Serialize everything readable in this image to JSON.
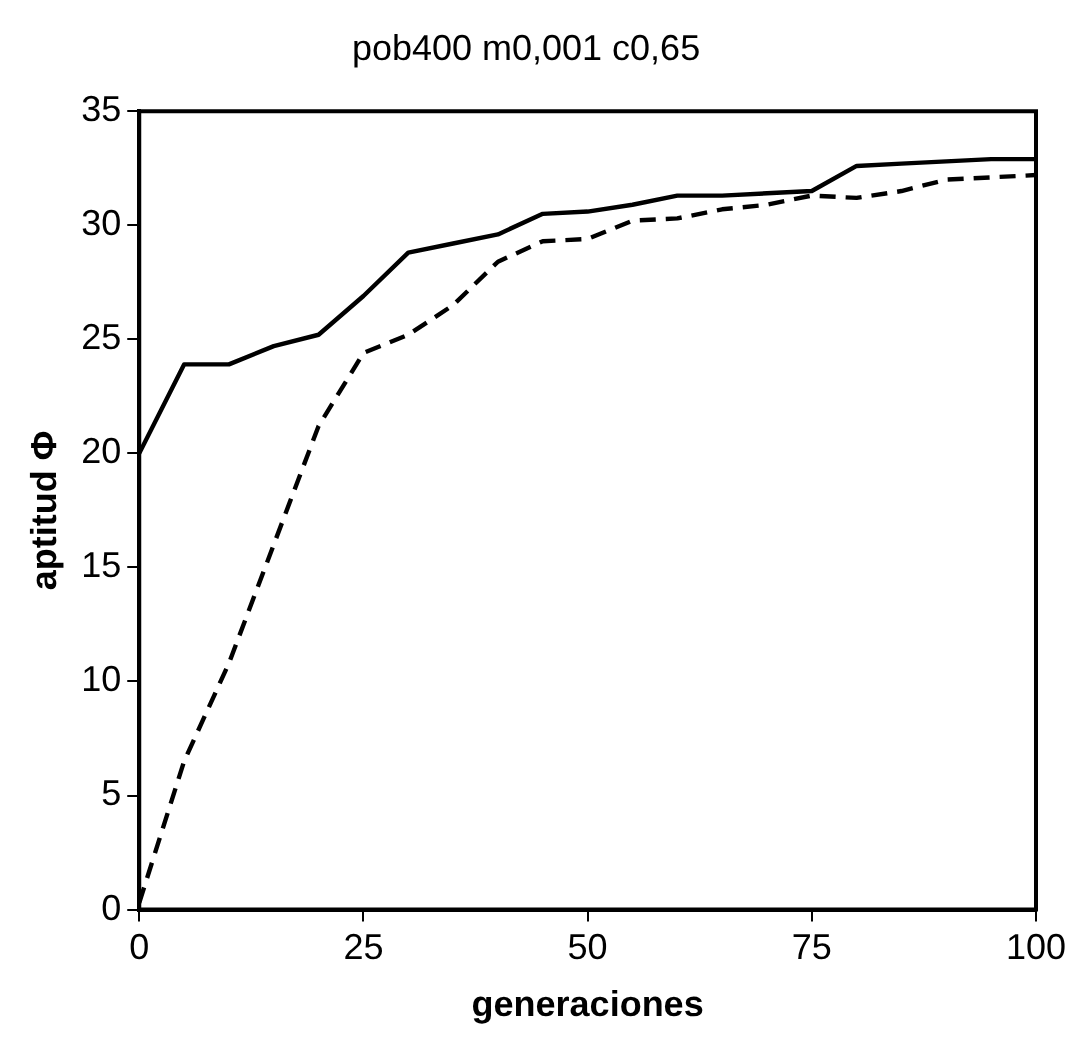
{
  "chart_data": {
    "type": "line",
    "title": "pob400 m0,001 c0,65",
    "xlabel": "generaciones",
    "ylabel": "aptitud Φ",
    "x": [
      0,
      5,
      10,
      15,
      20,
      25,
      30,
      35,
      40,
      45,
      50,
      55,
      60,
      65,
      70,
      75,
      80,
      85,
      90,
      95,
      100
    ],
    "series": [
      {
        "color": "#000000",
        "line_style": "solid",
        "values": [
          20,
          23.9,
          23.9,
          24.7,
          25.2,
          26.9,
          28.8,
          29.2,
          29.6,
          30.5,
          30.6,
          30.9,
          31.3,
          31.3,
          31.4,
          31.5,
          32.6,
          32.7,
          32.8,
          32.9,
          32.9
        ]
      },
      {
        "color": "#000000",
        "line_style": "dashed",
        "values": [
          0.3,
          6.5,
          10.8,
          16,
          21.2,
          24.4,
          25.2,
          26.5,
          28.4,
          29.3,
          29.4,
          30.2,
          30.3,
          30.7,
          30.9,
          31.3,
          31.2,
          31.5,
          32,
          32.1,
          32.2
        ]
      }
    ],
    "xlim": [
      0,
      100
    ],
    "xticks": [
      0,
      25,
      50,
      75,
      100
    ],
    "ylim": [
      0,
      35
    ],
    "yticks": [
      0,
      5,
      10,
      15,
      20,
      25,
      30,
      35
    ],
    "grid": false,
    "legend": false,
    "marker": "none"
  }
}
